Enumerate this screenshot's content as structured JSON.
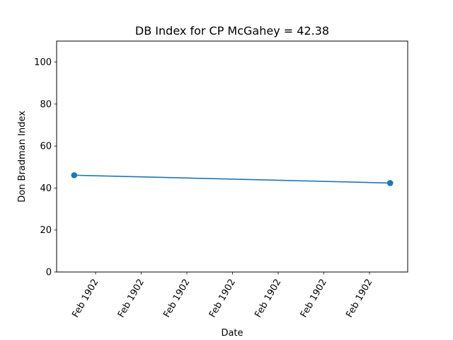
{
  "chart_data": {
    "type": "line",
    "title": "DB Index for CP McGahey = 42.38",
    "xlabel": "Date",
    "ylabel": "Don Bradman Index",
    "ylim": [
      0,
      110
    ],
    "yticks": [
      0,
      20,
      40,
      60,
      80,
      100
    ],
    "x_tick_labels": [
      "Feb 1902",
      "Feb 1902",
      "Feb 1902",
      "Feb 1902",
      "Feb 1902",
      "Feb 1902",
      "Feb 1902"
    ],
    "grid": false,
    "series": [
      {
        "color": "#1f77b4",
        "points": [
          {
            "x": "Feb 1902",
            "y": 46.1
          },
          {
            "x": "Feb 1902",
            "y": 42.38
          }
        ]
      }
    ]
  }
}
